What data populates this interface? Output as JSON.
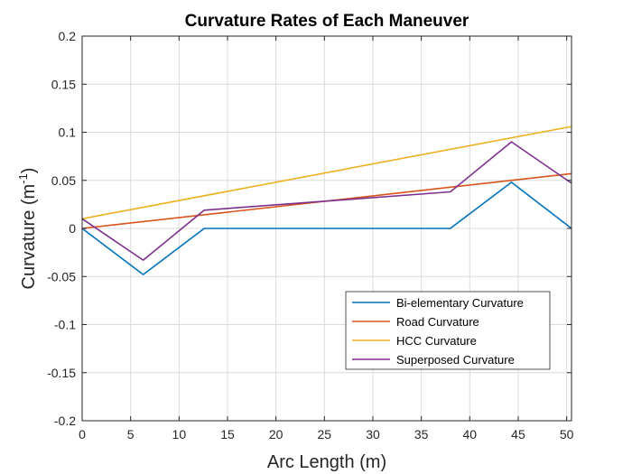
{
  "chart_data": {
    "type": "line",
    "title": "Curvature Rates of Each Maneuver",
    "xlabel": "Arc Length (m)",
    "ylabel_main": "Curvature (m",
    "ylabel_sup": "-1",
    "ylabel_end": ")",
    "xlim": [
      0,
      50.5
    ],
    "ylim": [
      -0.2,
      0.2
    ],
    "xticks": [
      0,
      5,
      10,
      15,
      20,
      25,
      30,
      35,
      40,
      45,
      50
    ],
    "xtick_labels": [
      "0",
      "5",
      "10",
      "15",
      "20",
      "25",
      "30",
      "35",
      "40",
      "45",
      "50"
    ],
    "yticks": [
      -0.2,
      -0.15,
      -0.1,
      -0.05,
      0,
      0.05,
      0.1,
      0.15,
      0.2
    ],
    "ytick_labels": [
      "-0.2",
      "-0.15",
      "-0.1",
      "-0.05",
      "0",
      "0.05",
      "0.1",
      "0.15",
      "0.2"
    ],
    "grid": true,
    "legend_position": "lower-right",
    "series": [
      {
        "name": "Bi-elementary Curvature",
        "color": "#0072BD",
        "points": [
          [
            0,
            0
          ],
          [
            6.3,
            -0.048
          ],
          [
            12.6,
            0
          ],
          [
            38.0,
            0
          ],
          [
            44.3,
            0.048
          ],
          [
            50.5,
            0
          ]
        ]
      },
      {
        "name": "Road Curvature",
        "color": "#D95319",
        "points": [
          [
            0,
            0
          ],
          [
            50.5,
            0.057
          ]
        ]
      },
      {
        "name": "HCC Curvature",
        "color": "#EDB120",
        "points": [
          [
            0,
            0.01
          ],
          [
            50.5,
            0.106
          ]
        ]
      },
      {
        "name": "Superposed Curvature",
        "color": "#7E2F8E",
        "points": [
          [
            0,
            0.01
          ],
          [
            6.3,
            -0.033
          ],
          [
            12.6,
            0.019
          ],
          [
            38.0,
            0.038
          ],
          [
            44.3,
            0.09
          ],
          [
            50.5,
            0.047
          ]
        ]
      }
    ]
  }
}
